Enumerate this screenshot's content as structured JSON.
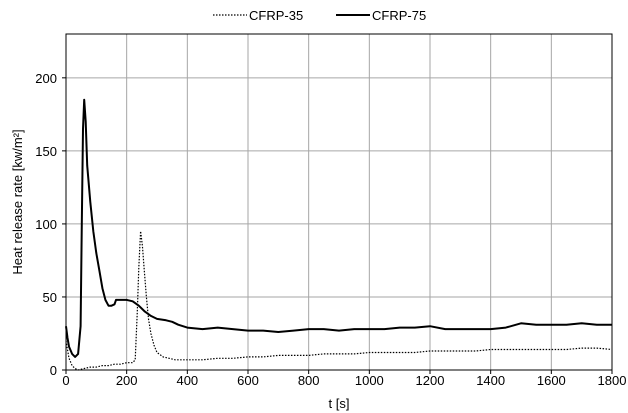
{
  "chart_data": {
    "type": "line",
    "xlabel": "t [s]",
    "ylabel": "Heat release rate [kw/m²]",
    "xlim": [
      0,
      1800
    ],
    "ylim": [
      0,
      230
    ],
    "xticks": [
      0,
      200,
      400,
      600,
      800,
      1000,
      1200,
      1400,
      1600,
      1800
    ],
    "yticks": [
      0,
      50,
      100,
      150,
      200
    ],
    "grid": true,
    "legend_position": "top-center",
    "series": [
      {
        "name": "CFRP-35",
        "style": "dotted",
        "color": "#000000",
        "points": [
          [
            0,
            20
          ],
          [
            10,
            8
          ],
          [
            20,
            3
          ],
          [
            30,
            1
          ],
          [
            40,
            0
          ],
          [
            60,
            1
          ],
          [
            80,
            2
          ],
          [
            100,
            2
          ],
          [
            120,
            3
          ],
          [
            140,
            3
          ],
          [
            160,
            4
          ],
          [
            180,
            4
          ],
          [
            200,
            5
          ],
          [
            220,
            5
          ],
          [
            228,
            7
          ],
          [
            235,
            40
          ],
          [
            240,
            70
          ],
          [
            246,
            95
          ],
          [
            252,
            85
          ],
          [
            258,
            68
          ],
          [
            265,
            50
          ],
          [
            272,
            35
          ],
          [
            280,
            25
          ],
          [
            290,
            17
          ],
          [
            300,
            12
          ],
          [
            320,
            9
          ],
          [
            340,
            8
          ],
          [
            360,
            7
          ],
          [
            380,
            7
          ],
          [
            400,
            7
          ],
          [
            450,
            7
          ],
          [
            500,
            8
          ],
          [
            550,
            8
          ],
          [
            600,
            9
          ],
          [
            650,
            9
          ],
          [
            700,
            10
          ],
          [
            750,
            10
          ],
          [
            800,
            10
          ],
          [
            850,
            11
          ],
          [
            900,
            11
          ],
          [
            950,
            11
          ],
          [
            1000,
            12
          ],
          [
            1050,
            12
          ],
          [
            1100,
            12
          ],
          [
            1150,
            12
          ],
          [
            1200,
            13
          ],
          [
            1250,
            13
          ],
          [
            1300,
            13
          ],
          [
            1350,
            13
          ],
          [
            1400,
            14
          ],
          [
            1450,
            14
          ],
          [
            1500,
            14
          ],
          [
            1550,
            14
          ],
          [
            1600,
            14
          ],
          [
            1650,
            14
          ],
          [
            1700,
            15
          ],
          [
            1750,
            15
          ],
          [
            1800,
            14
          ]
        ]
      },
      {
        "name": "CFRP-75",
        "style": "solid",
        "color": "#000000",
        "points": [
          [
            0,
            30
          ],
          [
            5,
            22
          ],
          [
            10,
            16
          ],
          [
            20,
            11
          ],
          [
            30,
            9
          ],
          [
            40,
            11
          ],
          [
            48,
            30
          ],
          [
            52,
            100
          ],
          [
            56,
            165
          ],
          [
            60,
            185
          ],
          [
            65,
            170
          ],
          [
            70,
            140
          ],
          [
            80,
            115
          ],
          [
            90,
            95
          ],
          [
            100,
            80
          ],
          [
            110,
            68
          ],
          [
            120,
            56
          ],
          [
            130,
            48
          ],
          [
            140,
            44
          ],
          [
            150,
            44
          ],
          [
            160,
            45
          ],
          [
            165,
            48
          ],
          [
            180,
            48
          ],
          [
            200,
            48
          ],
          [
            220,
            47
          ],
          [
            240,
            44
          ],
          [
            260,
            40
          ],
          [
            280,
            37
          ],
          [
            300,
            35
          ],
          [
            330,
            34
          ],
          [
            350,
            33
          ],
          [
            370,
            31
          ],
          [
            400,
            29
          ],
          [
            450,
            28
          ],
          [
            500,
            29
          ],
          [
            550,
            28
          ],
          [
            600,
            27
          ],
          [
            650,
            27
          ],
          [
            700,
            26
          ],
          [
            750,
            27
          ],
          [
            800,
            28
          ],
          [
            850,
            28
          ],
          [
            900,
            27
          ],
          [
            950,
            28
          ],
          [
            1000,
            28
          ],
          [
            1050,
            28
          ],
          [
            1100,
            29
          ],
          [
            1150,
            29
          ],
          [
            1200,
            30
          ],
          [
            1250,
            28
          ],
          [
            1300,
            28
          ],
          [
            1350,
            28
          ],
          [
            1400,
            28
          ],
          [
            1450,
            29
          ],
          [
            1500,
            32
          ],
          [
            1550,
            31
          ],
          [
            1600,
            31
          ],
          [
            1650,
            31
          ],
          [
            1700,
            32
          ],
          [
            1750,
            31
          ],
          [
            1800,
            31
          ]
        ]
      }
    ]
  }
}
